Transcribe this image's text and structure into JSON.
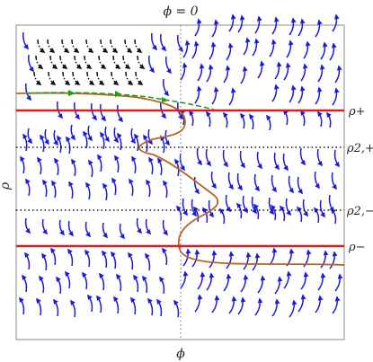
{
  "figure": {
    "top_label": "ϕ = 0",
    "x_label": "ϕ",
    "y_label": "ρ",
    "right_labels": {
      "rho_plus": "ρ+",
      "rho_2plus": "ρ2,+",
      "rho_2minus": "ρ2,−",
      "rho_minus": "ρ−"
    }
  },
  "colors": {
    "stream": "#1a1adc",
    "boundary_line": "#d91c1c",
    "separatrix": "#b5651d",
    "special_trajectory": "#1e9e1e",
    "dashdot_region": "#111111",
    "dotted_line": "#111111",
    "axis_dotted": "#888888"
  }
}
